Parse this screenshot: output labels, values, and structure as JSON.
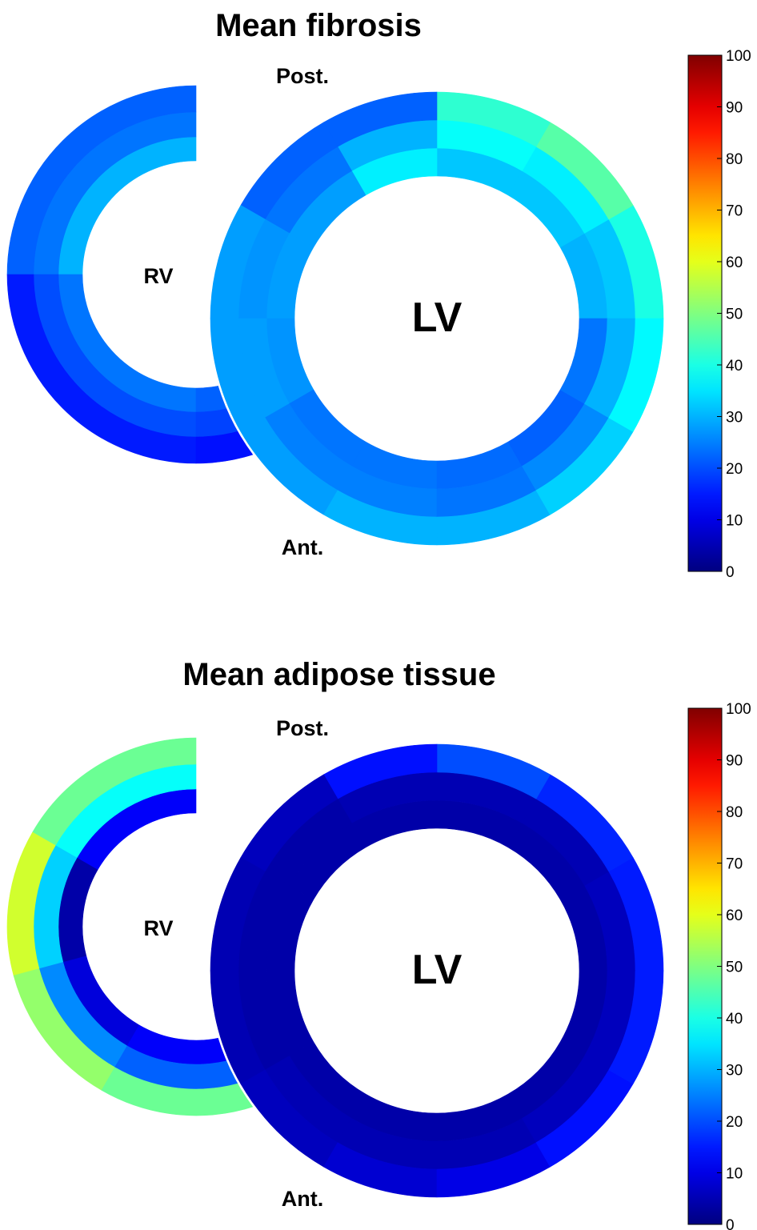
{
  "chart_data": [
    {
      "type": "heatmap",
      "title": "Mean fibrosis",
      "labels": {
        "posterior": "Post.",
        "anterior": "Ant.",
        "rv": "RV",
        "lv": "LV"
      },
      "colorbar": {
        "min": 0,
        "max": 100,
        "ticks": [
          "0",
          "10",
          "20",
          "30",
          "40",
          "50",
          "60",
          "70",
          "80",
          "90",
          "100"
        ],
        "colormap": "jet"
      },
      "rv": {
        "layers": [
          "inner",
          "middle",
          "outer"
        ],
        "segments": [
          {
            "from": 90,
            "to": 180,
            "values": [
              30,
              24,
              22
            ]
          },
          {
            "from": 180,
            "to": 270,
            "values": [
              24,
              20,
              15
            ]
          },
          {
            "from": 270,
            "to": 330,
            "values": [
              22,
              19,
              14
            ]
          }
        ]
      },
      "lv": {
        "layers": [
          "inner",
          "middle",
          "outer"
        ],
        "segments": [
          {
            "from": 0,
            "to": 30,
            "values": [
              30,
              32,
              40
            ]
          },
          {
            "from": 30,
            "to": 60,
            "values": [
              32,
              36,
              46
            ]
          },
          {
            "from": 60,
            "to": 90,
            "values": [
              32,
              38,
              42
            ]
          },
          {
            "from": 90,
            "to": 120,
            "values": [
              36,
              30,
              22
            ]
          },
          {
            "from": 120,
            "to": 150,
            "values": [
              28,
              24,
              22
            ]
          },
          {
            "from": 150,
            "to": 180,
            "values": [
              28,
              27,
              28
            ]
          },
          {
            "from": 180,
            "to": 210,
            "values": [
              27,
              28,
              28
            ]
          },
          {
            "from": 210,
            "to": 240,
            "values": [
              24,
              25,
              28
            ]
          },
          {
            "from": 240,
            "to": 270,
            "values": [
              24,
              25,
              30
            ]
          },
          {
            "from": 270,
            "to": 300,
            "values": [
              23,
              24,
              30
            ]
          },
          {
            "from": 300,
            "to": 330,
            "values": [
              22,
              26,
              33
            ]
          },
          {
            "from": 330,
            "to": 360,
            "values": [
              24,
              30,
              37
            ]
          }
        ]
      }
    },
    {
      "type": "heatmap",
      "title": "Mean adipose tissue",
      "labels": {
        "posterior": "Post.",
        "anterior": "Ant.",
        "rv": "RV",
        "lv": "LV"
      },
      "colorbar": {
        "min": 0,
        "max": 100,
        "ticks": [
          "0",
          "10",
          "20",
          "30",
          "40",
          "50",
          "60",
          "70",
          "80",
          "90",
          "100"
        ],
        "colormap": "jet"
      },
      "rv": {
        "layers": [
          "inner",
          "middle",
          "outer"
        ],
        "segments": [
          {
            "from": 90,
            "to": 150,
            "values": [
              12,
              38,
              48
            ]
          },
          {
            "from": 150,
            "to": 195,
            "values": [
              4,
              33,
              58
            ]
          },
          {
            "from": 195,
            "to": 240,
            "values": [
              9,
              26,
              52
            ]
          },
          {
            "from": 240,
            "to": 330,
            "values": [
              12,
              22,
              48
            ]
          }
        ]
      },
      "lv": {
        "layers": [
          "inner",
          "middle",
          "outer"
        ],
        "segments": [
          {
            "from": 0,
            "to": 30,
            "values": [
              4,
              6,
              15
            ]
          },
          {
            "from": 30,
            "to": 60,
            "values": [
              4,
              5,
              16
            ]
          },
          {
            "from": 60,
            "to": 90,
            "values": [
              4,
              5,
              20
            ]
          },
          {
            "from": 90,
            "to": 120,
            "values": [
              4,
              5,
              14
            ]
          },
          {
            "from": 120,
            "to": 150,
            "values": [
              4,
              4,
              6
            ]
          },
          {
            "from": 150,
            "to": 180,
            "values": [
              4,
              4,
              5
            ]
          },
          {
            "from": 180,
            "to": 210,
            "values": [
              4,
              4,
              5
            ]
          },
          {
            "from": 210,
            "to": 240,
            "values": [
              4,
              5,
              6
            ]
          },
          {
            "from": 240,
            "to": 270,
            "values": [
              4,
              5,
              8
            ]
          },
          {
            "from": 270,
            "to": 300,
            "values": [
              4,
              5,
              10
            ]
          },
          {
            "from": 300,
            "to": 330,
            "values": [
              4,
              6,
              14
            ]
          },
          {
            "from": 330,
            "to": 360,
            "values": [
              4,
              6,
              15
            ]
          }
        ]
      }
    }
  ]
}
